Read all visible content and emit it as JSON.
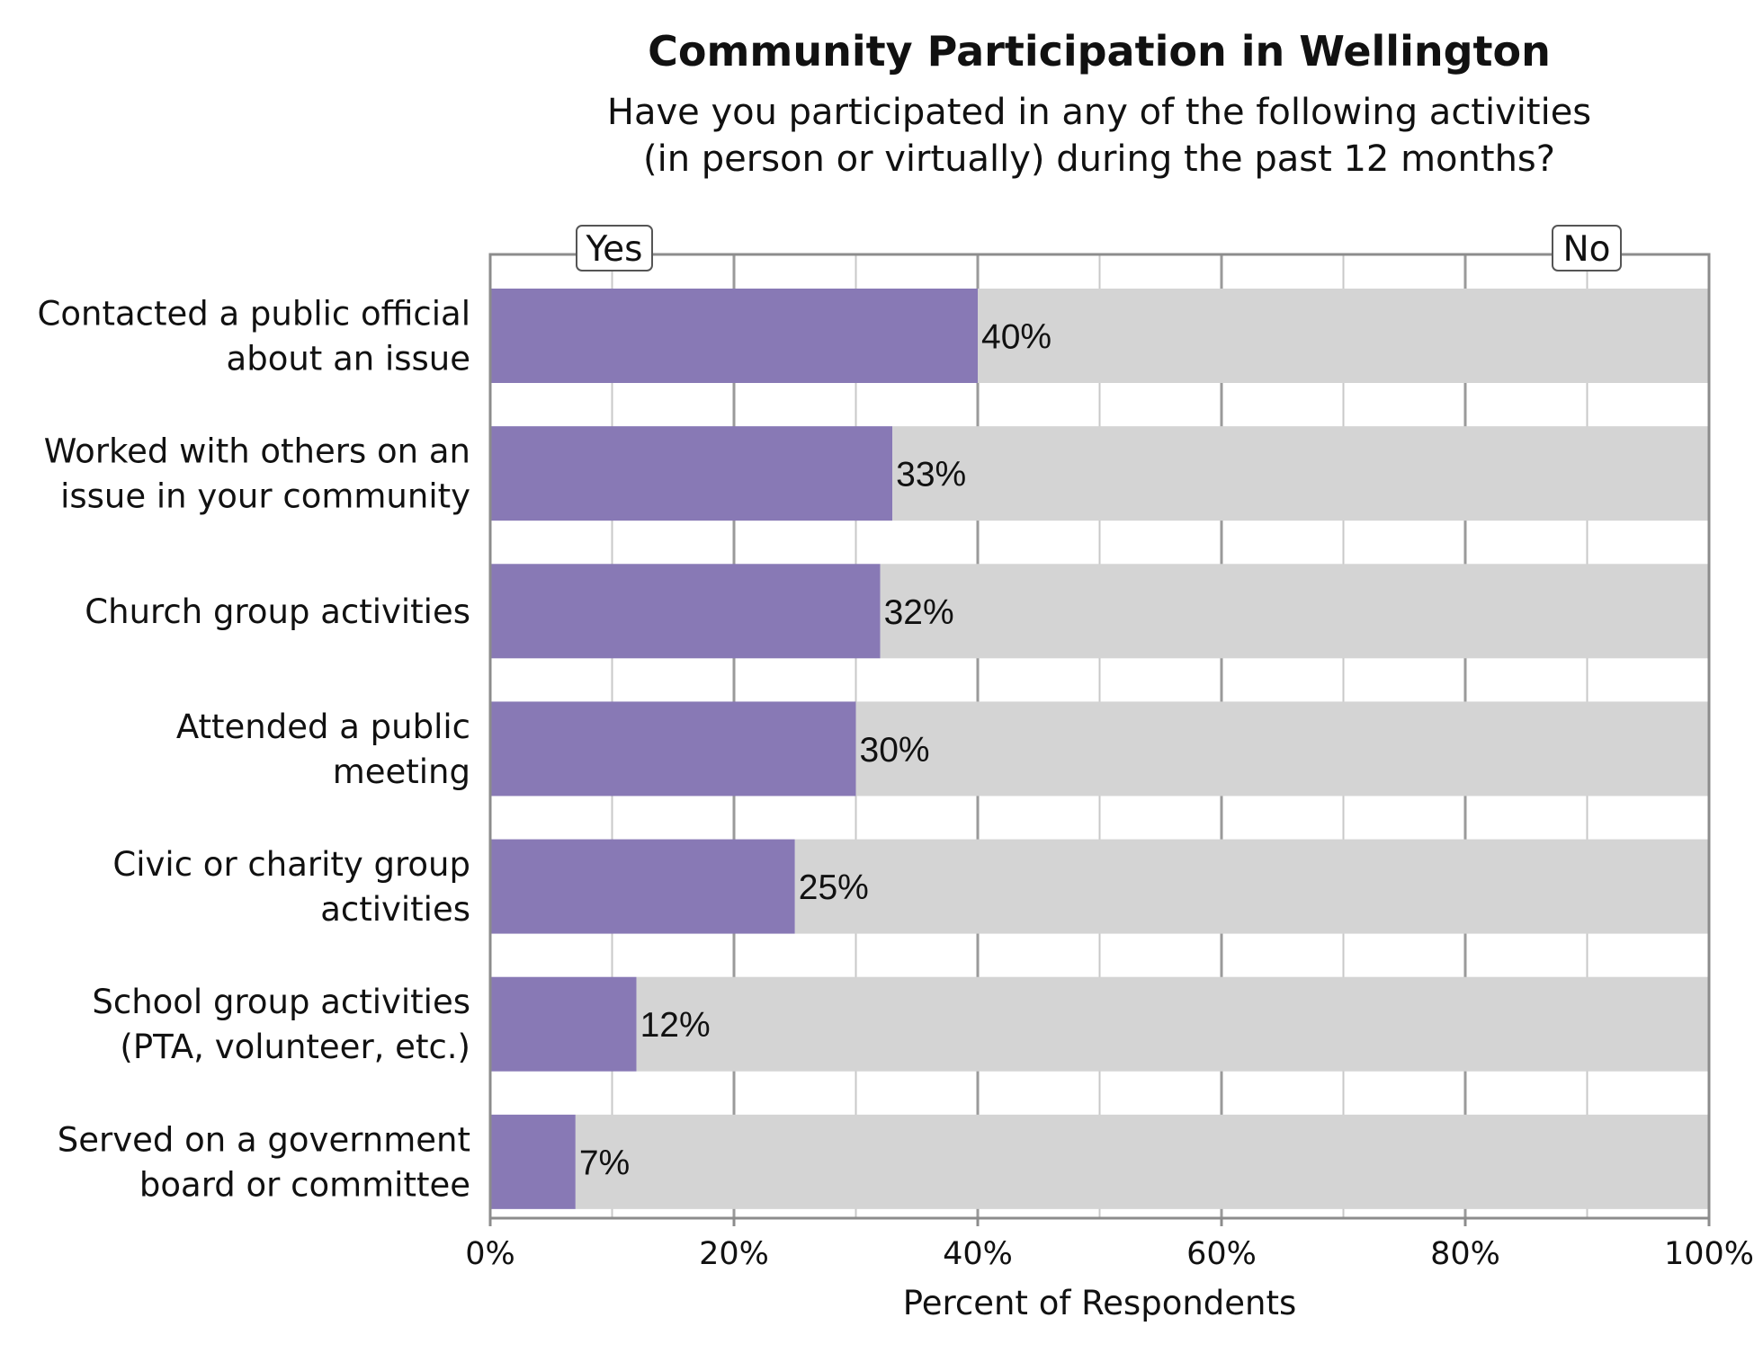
{
  "chart_data": {
    "type": "bar",
    "orientation": "horizontal",
    "stacked": true,
    "title": "Community Participation in Wellington",
    "subtitle_lines": [
      "Have you participated in any of the following activities",
      "(in person or virtually) during the past 12 months?"
    ],
    "categories": [
      [
        "Contacted a public official",
        "about an issue"
      ],
      [
        "Worked with others on an",
        "issue in your community"
      ],
      [
        "Church group activities"
      ],
      [
        "Attended a public",
        "meeting"
      ],
      [
        "Civic or charity group",
        "activities"
      ],
      [
        "School group activities",
        "(PTA, volunteer, etc.)"
      ],
      [
        "Served on a government",
        "board or committee"
      ]
    ],
    "series": [
      {
        "name": "Yes",
        "values": [
          40,
          33,
          32,
          30,
          25,
          12,
          7
        ],
        "color": "#8879b5"
      },
      {
        "name": "No",
        "values": [
          60,
          67,
          68,
          70,
          75,
          88,
          93
        ],
        "color": "#d4d4d4"
      }
    ],
    "data_labels": [
      "40%",
      "33%",
      "32%",
      "30%",
      "25%",
      "12%",
      "7%"
    ],
    "xlabel": "Percent of Respondents",
    "xlim": [
      0,
      100
    ],
    "x_ticks": [
      0,
      20,
      40,
      60,
      80,
      100
    ],
    "x_tick_labels": [
      "0%",
      "20%",
      "40%",
      "60%",
      "80%",
      "100%"
    ],
    "grid": true,
    "legend": "series names boxed above plot, Yes at left, No at right"
  }
}
